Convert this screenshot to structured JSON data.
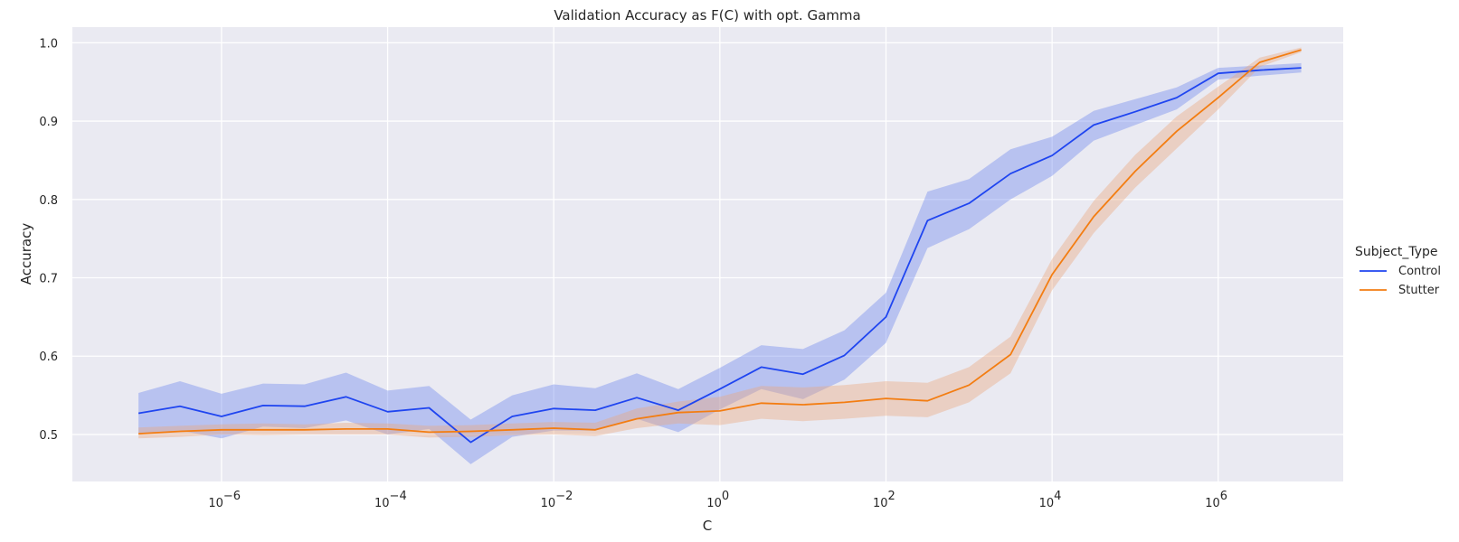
{
  "chart_data": {
    "type": "line",
    "title": "Validation Accuracy as F(C) with opt. Gamma",
    "xlabel": "C",
    "ylabel": "Accuracy",
    "xscale": "log",
    "xlim": [
      1.6e-08,
      32000000.0
    ],
    "ylim": [
      0.44,
      1.02
    ],
    "xticks": [
      {
        "base": "10",
        "exp": "−6",
        "value": 1e-06
      },
      {
        "base": "10",
        "exp": "−4",
        "value": 0.0001
      },
      {
        "base": "10",
        "exp": "−2",
        "value": 0.01
      },
      {
        "base": "10",
        "exp": "0",
        "value": 1
      },
      {
        "base": "10",
        "exp": "2",
        "value": 100
      },
      {
        "base": "10",
        "exp": "4",
        "value": 10000
      },
      {
        "base": "10",
        "exp": "6",
        "value": 1000000
      }
    ],
    "yticks": [
      {
        "label": "0.5",
        "value": 0.5
      },
      {
        "label": "0.6",
        "value": 0.6
      },
      {
        "label": "0.7",
        "value": 0.7
      },
      {
        "label": "0.8",
        "value": 0.8
      },
      {
        "label": "0.9",
        "value": 0.9
      },
      {
        "label": "1.0",
        "value": 1.0
      }
    ],
    "grid": true,
    "legend": {
      "title": "Subject_Type",
      "position": "right"
    },
    "x": [
      1e-07,
      3.16e-07,
      1e-06,
      3.16e-06,
      1e-05,
      3.16e-05,
      0.0001,
      0.000316,
      0.001,
      0.00316,
      0.01,
      0.0316,
      0.1,
      0.316,
      1,
      3.16,
      10,
      31.6,
      100,
      316,
      1000,
      3162,
      10000,
      31623,
      100000,
      316228,
      1000000,
      3162278,
      10000000
    ],
    "series": [
      {
        "name": "Control",
        "color": "#1f45f0",
        "band_color": "#6e86ee",
        "values": [
          0.527,
          0.536,
          0.523,
          0.537,
          0.536,
          0.548,
          0.529,
          0.534,
          0.49,
          0.523,
          0.533,
          0.531,
          0.547,
          0.531,
          0.558,
          0.586,
          0.577,
          0.601,
          0.65,
          0.773,
          0.795,
          0.833,
          0.856,
          0.895,
          0.912,
          0.93,
          0.961,
          0.965,
          0.968
        ],
        "lower": [
          0.5,
          0.505,
          0.495,
          0.51,
          0.508,
          0.518,
          0.5,
          0.507,
          0.462,
          0.497,
          0.505,
          0.505,
          0.52,
          0.503,
          0.532,
          0.558,
          0.545,
          0.57,
          0.617,
          0.738,
          0.762,
          0.8,
          0.83,
          0.875,
          0.895,
          0.915,
          0.953,
          0.958,
          0.962
        ],
        "upper": [
          0.553,
          0.568,
          0.552,
          0.565,
          0.564,
          0.579,
          0.556,
          0.562,
          0.519,
          0.55,
          0.564,
          0.559,
          0.578,
          0.558,
          0.585,
          0.614,
          0.609,
          0.633,
          0.681,
          0.81,
          0.826,
          0.864,
          0.88,
          0.913,
          0.928,
          0.943,
          0.968,
          0.971,
          0.974
        ]
      },
      {
        "name": "Stutter",
        "color": "#f37d12",
        "band_color": "#eba87c",
        "values": [
          0.501,
          0.504,
          0.506,
          0.506,
          0.506,
          0.507,
          0.507,
          0.503,
          0.504,
          0.506,
          0.508,
          0.506,
          0.52,
          0.528,
          0.53,
          0.54,
          0.538,
          0.541,
          0.546,
          0.543,
          0.563,
          0.602,
          0.704,
          0.778,
          0.836,
          0.887,
          0.93,
          0.975,
          0.991
        ],
        "lower": [
          0.495,
          0.497,
          0.5,
          0.499,
          0.5,
          0.5,
          0.5,
          0.496,
          0.497,
          0.499,
          0.5,
          0.498,
          0.508,
          0.514,
          0.512,
          0.52,
          0.517,
          0.52,
          0.524,
          0.522,
          0.541,
          0.578,
          0.684,
          0.757,
          0.815,
          0.865,
          0.915,
          0.969,
          0.988
        ],
        "upper": [
          0.509,
          0.511,
          0.513,
          0.514,
          0.513,
          0.515,
          0.514,
          0.511,
          0.512,
          0.514,
          0.516,
          0.515,
          0.533,
          0.542,
          0.548,
          0.562,
          0.56,
          0.563,
          0.568,
          0.566,
          0.586,
          0.625,
          0.724,
          0.798,
          0.857,
          0.906,
          0.944,
          0.981,
          0.994
        ]
      }
    ]
  }
}
